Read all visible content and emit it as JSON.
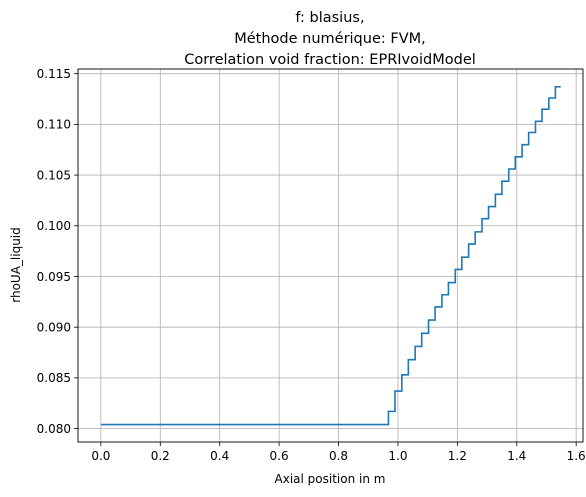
{
  "chart_data": {
    "type": "line",
    "drawstyle": "steps-post",
    "title_lines": [
      "f: blasius,",
      "Méthode numérique: FVM,",
      "Correlation void fraction: EPRIvoidModel"
    ],
    "xlabel": "Axial position in m",
    "ylabel": "rhoUA_liquid",
    "xlim": [
      -0.077,
      1.623
    ],
    "ylim": [
      0.07868,
      0.11546
    ],
    "xticks": [
      0.0,
      0.2,
      0.4,
      0.6,
      0.8,
      1.0,
      1.2,
      1.4,
      1.6
    ],
    "xtick_labels": [
      "0.0",
      "0.2",
      "0.4",
      "0.6",
      "0.8",
      "1.0",
      "1.2",
      "1.4",
      "1.6"
    ],
    "yticks": [
      0.08,
      0.085,
      0.09,
      0.095,
      0.1,
      0.105,
      0.11,
      0.115
    ],
    "ytick_labels": [
      "0.080",
      "0.085",
      "0.090",
      "0.095",
      "0.100",
      "0.105",
      "0.110",
      "0.115"
    ],
    "grid": true,
    "colors": {
      "line": "#1f77b4",
      "grid": "#b0b0b0",
      "axes": "#000000"
    },
    "series": [
      {
        "x": [
          0.0,
          0.968,
          0.99,
          1.013,
          1.035,
          1.058,
          1.08,
          1.103,
          1.125,
          1.148,
          1.17,
          1.193,
          1.215,
          1.238,
          1.26,
          1.283,
          1.305,
          1.328,
          1.35,
          1.373,
          1.395,
          1.418,
          1.44,
          1.463,
          1.485,
          1.508,
          1.53,
          1.548
        ],
        "y": [
          0.0804,
          0.0817,
          0.0837,
          0.0853,
          0.0868,
          0.0881,
          0.0894,
          0.0907,
          0.092,
          0.0932,
          0.0944,
          0.0957,
          0.0969,
          0.0982,
          0.0994,
          0.1007,
          0.1019,
          0.1031,
          0.1044,
          0.1056,
          0.1068,
          0.108,
          0.1092,
          0.1103,
          0.1115,
          0.1126,
          0.1137,
          0.1137
        ]
      }
    ]
  }
}
